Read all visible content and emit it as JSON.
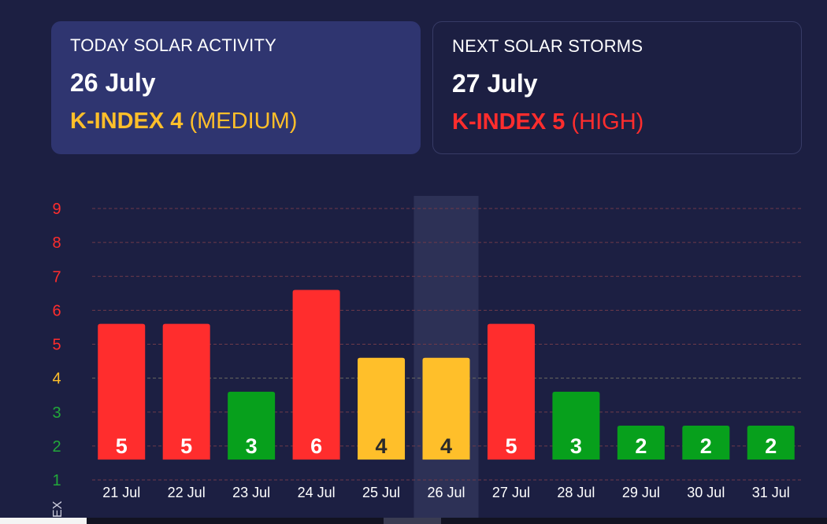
{
  "cards": {
    "today": {
      "label": "TODAY SOLAR ACTIVITY",
      "date": "26 July",
      "kindex": "K-INDEX 4",
      "level": "(MEDIUM)",
      "color": "#ffbf2a"
    },
    "next": {
      "label": "NEXT SOLAR STORMS",
      "date": "27 July",
      "kindex": "K-INDEX 5",
      "level": "(HIGH)",
      "color": "#ff2d2d"
    }
  },
  "chart_data": {
    "type": "bar",
    "categories": [
      "21 Jul",
      "22 Jul",
      "23 Jul",
      "24 Jul",
      "25 Jul",
      "26 Jul",
      "27 Jul",
      "28 Jul",
      "29 Jul",
      "30 Jul",
      "31 Jul"
    ],
    "values": [
      5,
      5,
      3,
      6,
      4,
      4,
      5,
      3,
      2,
      2,
      2
    ],
    "data_labels": [
      "5",
      "5",
      "3",
      "6",
      "4",
      "4",
      "5",
      "3",
      "2",
      "2",
      "2"
    ],
    "ylim": [
      1,
      9
    ],
    "yticks": [
      "1",
      "2",
      "3",
      "4",
      "5",
      "6",
      "7",
      "8",
      "9"
    ],
    "ytick_colors": [
      "#22a83a",
      "#22a83a",
      "#22a83a",
      "#ffbf2a",
      "#ff2d2d",
      "#ff2d2d",
      "#ff2d2d",
      "#ff2d2d",
      "#ff2d2d"
    ],
    "highlighted_category": "26 Jul",
    "grid": true,
    "level_colors": {
      "low": "#07a01c",
      "medium": "#ffbf2a",
      "high": "#ff2d2d"
    },
    "ylabel_partial": "EX"
  }
}
